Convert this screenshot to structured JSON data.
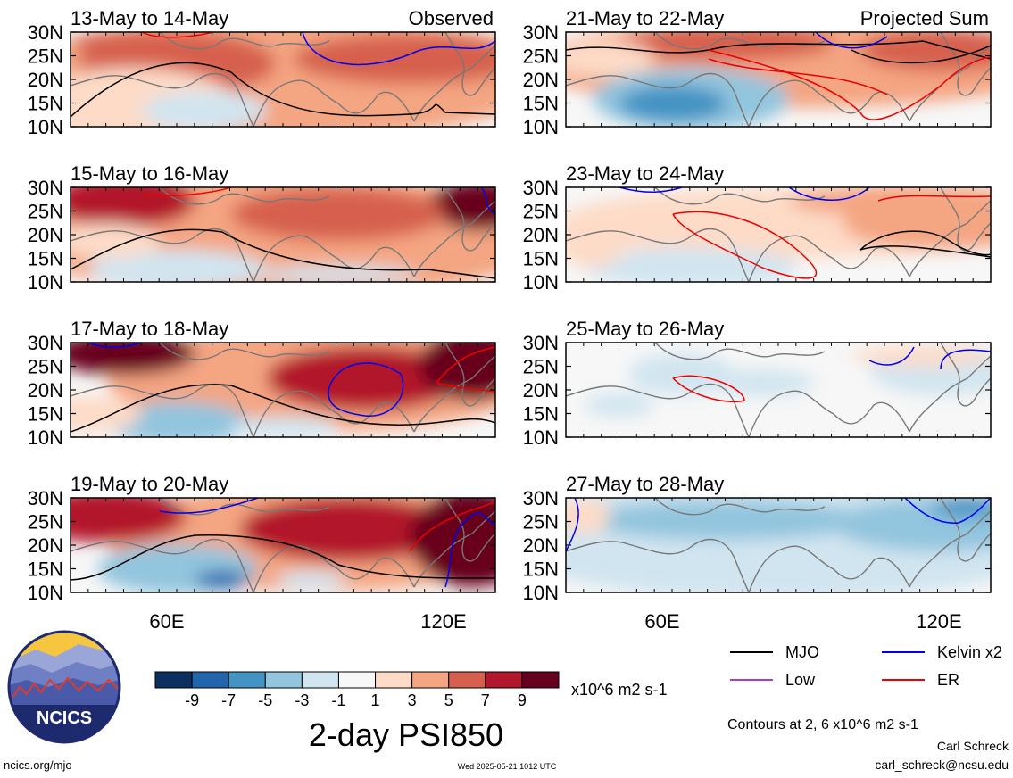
{
  "chart_data": {
    "type": "heatmap",
    "title": "2-day PSI850",
    "variable": "PSI850",
    "units": "x10^6 m2 s-1",
    "column_labels": [
      "Observed",
      "Projected Sum"
    ],
    "lat_ticks": [
      "30N",
      "25N",
      "20N",
      "15N",
      "10N"
    ],
    "lon_ticks": [
      "60E",
      "120E"
    ],
    "colorbar": {
      "tick_labels": [
        "-9",
        "-7",
        "-5",
        "-3",
        "-1",
        "1",
        "3",
        "5",
        "7",
        "9"
      ],
      "colors": [
        "#0b2f5e",
        "#2166ac",
        "#4393c3",
        "#92c5de",
        "#d1e5f0",
        "#f7f7f7",
        "#fddbc7",
        "#f4a582",
        "#d6604d",
        "#b2182b",
        "#67001f"
      ]
    },
    "panels": [
      {
        "period": "13-May to 14-May",
        "column": "Observed"
      },
      {
        "period": "15-May to 16-May",
        "column": "Observed"
      },
      {
        "period": "17-May to 18-May",
        "column": "Observed"
      },
      {
        "period": "19-May to 20-May",
        "column": "Observed"
      },
      {
        "period": "21-May to 22-May",
        "column": "Projected Sum"
      },
      {
        "period": "23-May to 24-May",
        "column": "Projected Sum"
      },
      {
        "period": "25-May to 26-May",
        "column": "Projected Sum"
      },
      {
        "period": "27-May to 28-May",
        "column": "Projected Sum"
      }
    ],
    "legend": [
      {
        "name": "MJO",
        "color": "#000000"
      },
      {
        "name": "Kelvin x2",
        "color": "#0000ee"
      },
      {
        "name": "Low",
        "color": "#a040d0"
      },
      {
        "name": "ER",
        "color": "#ee0000"
      }
    ],
    "contour_note": "Contours at 2, 6 x10^6 m2 s-1"
  },
  "footer": {
    "logo_text": "NCICS",
    "site": "ncics.org/mjo",
    "timestamp": "Wed 2025-05-21 1012 UTC",
    "author": "Carl Schreck",
    "email": "carl_schreck@ncsu.edu"
  }
}
